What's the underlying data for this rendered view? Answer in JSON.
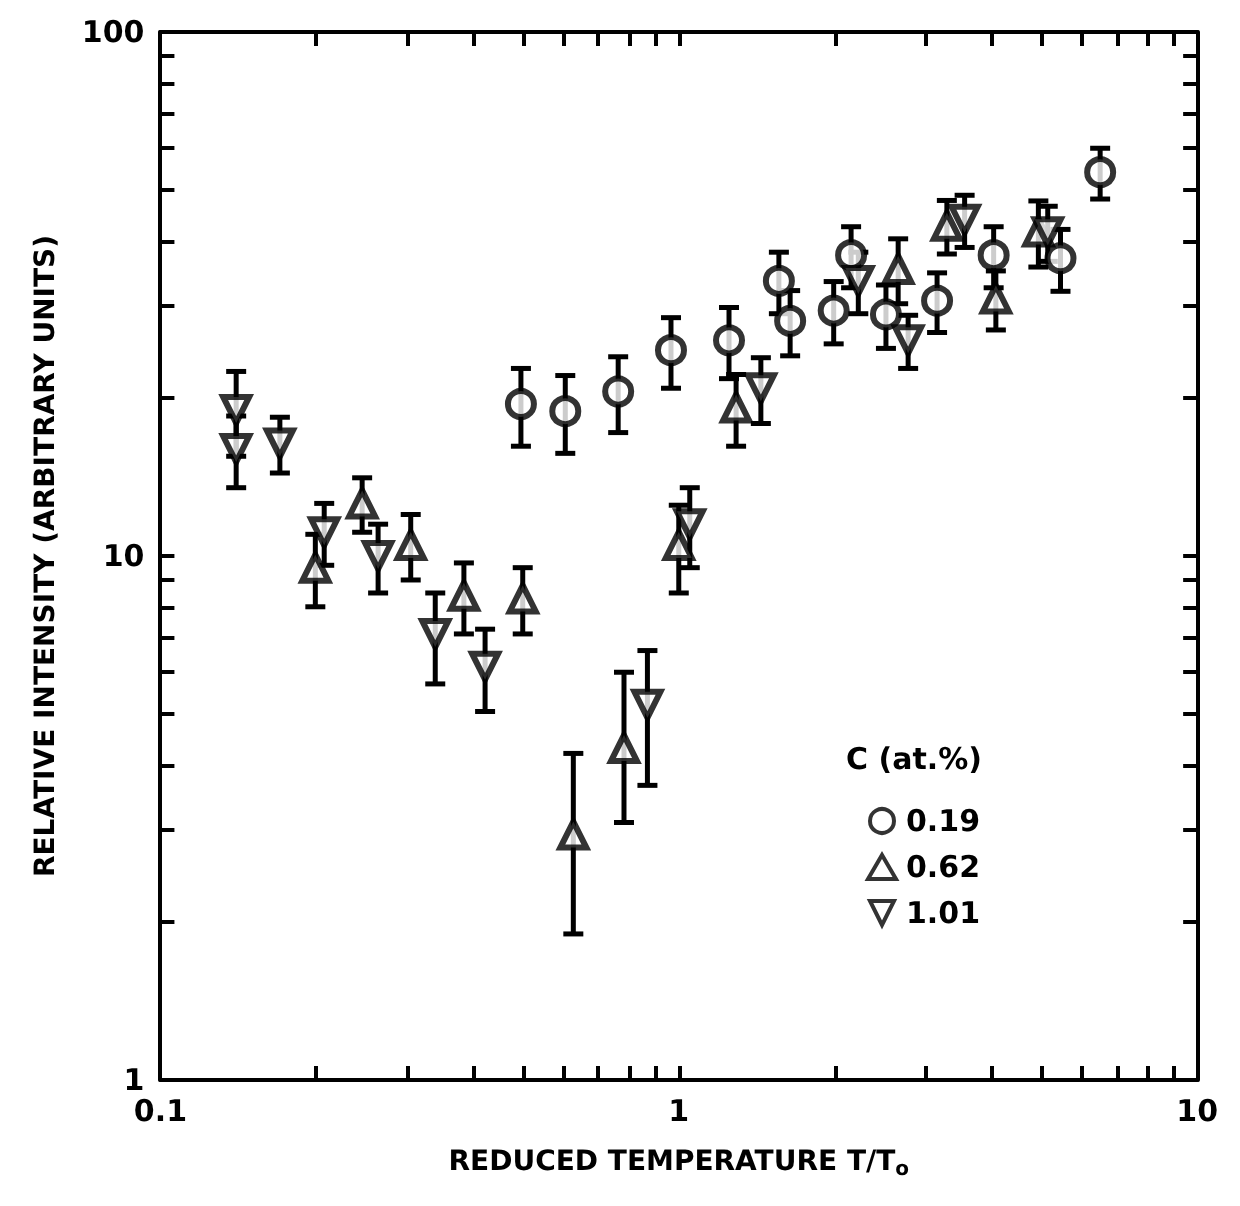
{
  "chart_data": {
    "type": "scatter",
    "xlabel": "REDUCED TEMPERATURE T/T$_{o}$",
    "ylabel": "RELATIVE INTENSITY (ARBITRARY UNITS)",
    "legend_title": "C (at.%)",
    "legend": "right",
    "log": "xy",
    "xlim": [
      0.1,
      10
    ],
    "ylim": [
      1,
      100
    ],
    "xticks": [
      0.1,
      {
        "value": 0.2,
        "label": null
      },
      {
        "value": 0.3,
        "label": null
      },
      {
        "value": 0.4,
        "label": null
      },
      {
        "value": 0.5,
        "label": null
      },
      {
        "value": 0.6,
        "label": null
      },
      {
        "value": 0.7,
        "label": null
      },
      {
        "value": 0.8,
        "label": null
      },
      {
        "value": 0.9,
        "label": null
      },
      1,
      {
        "value": 2,
        "label": null
      },
      {
        "value": 3,
        "label": null
      },
      {
        "value": 4,
        "label": null
      },
      {
        "value": 5,
        "label": null
      },
      {
        "value": 6,
        "label": null
      },
      {
        "value": 7,
        "label": null
      },
      {
        "value": 8,
        "label": null
      },
      {
        "value": 9,
        "label": null
      },
      10
    ],
    "yticks": [
      1,
      {
        "value": 2,
        "label": null
      },
      {
        "value": 3,
        "label": null
      },
      {
        "value": 4,
        "label": null
      },
      {
        "value": 5,
        "label": null
      },
      {
        "value": 6,
        "label": null
      },
      {
        "value": 7,
        "label": null
      },
      {
        "value": 8,
        "label": null
      },
      {
        "value": 9,
        "label": null
      },
      10,
      {
        "value": 20,
        "label": null
      },
      {
        "value": 30,
        "label": null
      },
      {
        "value": 40,
        "label": null
      },
      {
        "value": 50,
        "label": null
      },
      {
        "value": 60,
        "label": null
      },
      {
        "value": 70,
        "label": null
      },
      {
        "value": 80,
        "label": null
      },
      {
        "value": 90,
        "label": null
      },
      100
    ],
    "series": [
      {
        "name": "0.19",
        "color": "#000000",
        "marker": "circle",
        "x": [
          0.496,
          0.604,
          0.764,
          0.966,
          1.25,
          1.56,
          1.64,
          1.99,
          2.15,
          2.51,
          3.15,
          4.05,
          5.45,
          6.5
        ],
        "values": [
          19.5,
          18.9,
          20.6,
          24.7,
          25.8,
          33.5,
          28.1,
          29.4,
          37.5,
          28.9,
          30.7,
          37.5,
          37,
          54
        ],
        "errors": [
          3.3,
          3.2,
          3.4,
          3.8,
          4,
          4.5,
          4,
          4,
          5,
          4,
          4,
          5,
          5,
          6
        ]
      },
      {
        "name": "0.62",
        "color": "#000000",
        "marker": "triangle",
        "x": [
          0.199,
          0.245,
          0.304,
          0.385,
          0.5,
          0.626,
          0.784,
          1.0,
          1.29,
          2.65,
          3.29,
          4.09,
          4.94
        ],
        "values": [
          9.5,
          12.6,
          10.5,
          8.4,
          8.3,
          2.94,
          4.3,
          10.5,
          19.2,
          35.3,
          42.7,
          31,
          41.6
        ],
        "errors": [
          1.5,
          1.5,
          1.5,
          1.3,
          1.2,
          [
            1.9,
            4.2
          ],
          [
            3.1,
            6.0
          ],
          2,
          3,
          5,
          5,
          4,
          6
        ]
      },
      {
        "name": "1.01",
        "color": "#000000",
        "marker": "triangle-down",
        "x": [
          0.14,
          0.14,
          0.17,
          0.207,
          0.263,
          0.339,
          0.423,
          0.87,
          1.05,
          1.44,
          2.22,
          2.77,
          3.56,
          5.15
        ],
        "values": [
          19,
          16,
          16.4,
          11.1,
          10,
          7.1,
          6.15,
          5.2,
          11.5,
          20.9,
          33.5,
          25.8,
          43.8,
          41.5
        ],
        "errors": [
          3.5,
          2.5,
          2,
          1.5,
          1.5,
          1.4,
          1.1,
          [
            3.65,
            6.6
          ],
          2,
          3,
          4.5,
          3,
          5,
          5
        ]
      }
    ]
  }
}
